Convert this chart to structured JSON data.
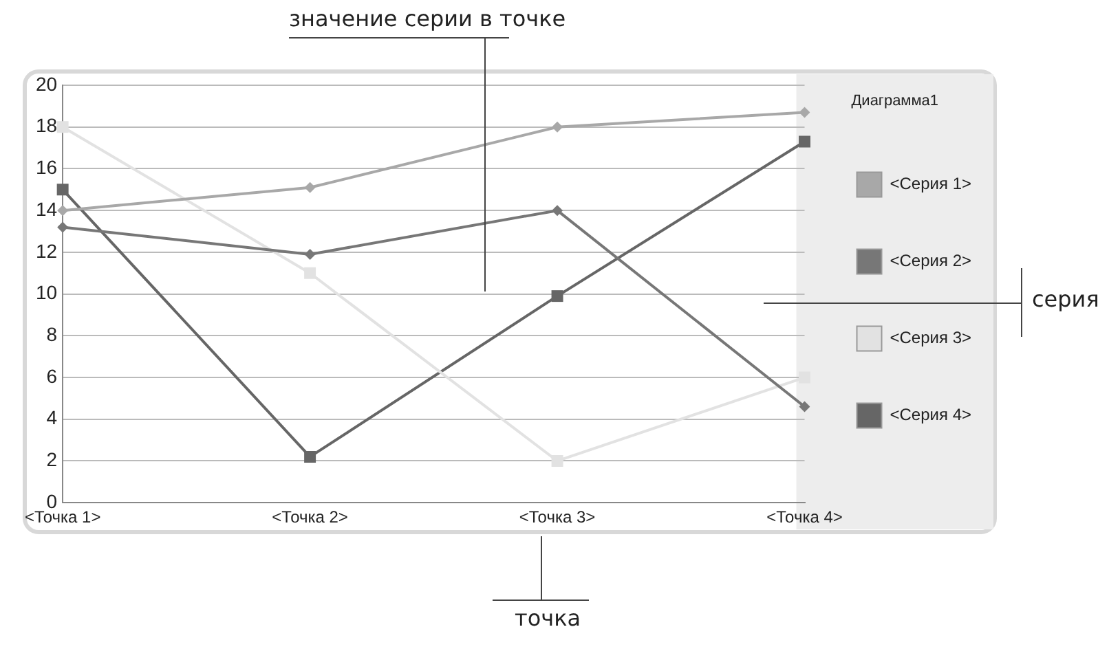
{
  "chart_data": {
    "type": "line",
    "legend_title": "Диаграмма1",
    "annotations": [
      "значение серии в точке",
      "серия",
      "точка"
    ],
    "categories": [
      "<Точка 1>",
      "<Точка 2>",
      "<Точка 3>",
      "<Точка 4>"
    ],
    "series": [
      {
        "name": "<Серия 1>",
        "color": "#a8a8a8",
        "marker": "diamond",
        "values": [
          14,
          15.1,
          18,
          18.7
        ]
      },
      {
        "name": "<Серия 2>",
        "color": "#777777",
        "marker": "diamond",
        "values": [
          13.2,
          11.9,
          14,
          4.6
        ]
      },
      {
        "name": "<Серия 3>",
        "color": "#e2e2e2",
        "marker": "square",
        "values": [
          18,
          11,
          2,
          6
        ]
      },
      {
        "name": "<Серия 4>",
        "color": "#666666",
        "marker": "square",
        "values": [
          15,
          2.2,
          9.9,
          17.3
        ]
      }
    ],
    "ylim": [
      0,
      20
    ],
    "yticks": [
      0,
      2,
      4,
      6,
      8,
      10,
      12,
      14,
      16,
      18,
      20
    ],
    "grid": "y",
    "legend": "right",
    "line_style": "solid"
  }
}
